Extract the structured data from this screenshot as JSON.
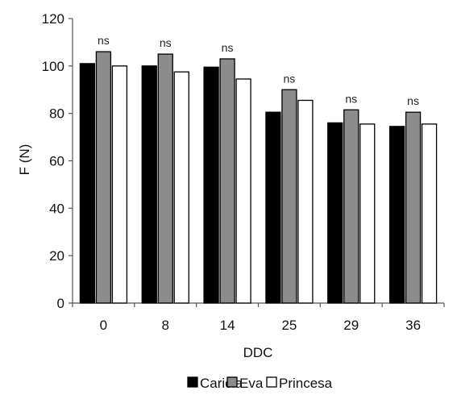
{
  "chart_data": {
    "type": "bar",
    "categories": [
      "0",
      "8",
      "14",
      "25",
      "29",
      "36"
    ],
    "series": [
      {
        "name": "Caricia",
        "color": "#000000",
        "values": [
          101,
          100,
          99.5,
          80.5,
          76,
          74.5
        ]
      },
      {
        "name": "Eva",
        "color": "#8c8c8c",
        "values": [
          106,
          105,
          103,
          90,
          81.5,
          80.5
        ]
      },
      {
        "name": "Princesa",
        "color": "#ffffff",
        "values": [
          100,
          97.5,
          94.5,
          85.5,
          75.5,
          75.5
        ]
      }
    ],
    "annotations": [
      "ns",
      "ns",
      "ns",
      "ns",
      "ns",
      "ns"
    ],
    "xlabel": "DDC",
    "ylabel": "F (N)",
    "ylim": [
      0,
      120
    ],
    "yticks": [
      0,
      20,
      40,
      60,
      80,
      100,
      120
    ],
    "grid": false,
    "legend_position": "bottom"
  }
}
